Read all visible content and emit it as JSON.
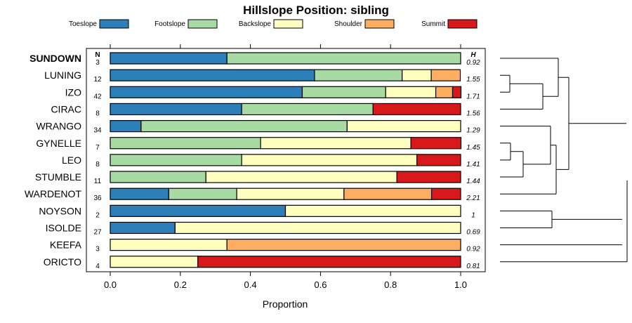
{
  "chart_data": {
    "type": "bar",
    "stacked": true,
    "orientation": "horizontal",
    "title": "Hillslope Position: sibling",
    "xlabel": "Proportion",
    "ylabel": "",
    "xlim": [
      0,
      1
    ],
    "xticks": [
      "0.0",
      "0.2",
      "0.4",
      "0.6",
      "0.8",
      "1.0"
    ],
    "n_header": "N",
    "h_header": "H",
    "categories": [
      "Toeslope",
      "Footslope",
      "Backslope",
      "Shoulder",
      "Summit"
    ],
    "colors": [
      "#2c7fb8",
      "#a8dba3",
      "#ffffbf",
      "#fdae61",
      "#d7191c"
    ],
    "highlight": "SUNDOWN",
    "rows": [
      {
        "name": "SUNDOWN",
        "n": "3",
        "h": "0.92",
        "values": [
          0.333,
          0.667,
          0,
          0,
          0
        ]
      },
      {
        "name": "LUNING",
        "n": "12",
        "h": "1.55",
        "values": [
          0.583,
          0.25,
          0.083,
          0.083,
          0
        ]
      },
      {
        "name": "IZO",
        "n": "42",
        "h": "1.71",
        "values": [
          0.548,
          0.238,
          0.143,
          0.048,
          0.024
        ]
      },
      {
        "name": "CIRAC",
        "n": "8",
        "h": "1.56",
        "values": [
          0.375,
          0.375,
          0,
          0,
          0.25
        ]
      },
      {
        "name": "WRANGO",
        "n": "34",
        "h": "1.29",
        "values": [
          0.088,
          0.588,
          0.324,
          0,
          0
        ]
      },
      {
        "name": "GYNELLE",
        "n": "7",
        "h": "1.45",
        "values": [
          0,
          0.429,
          0.429,
          0,
          0.143
        ]
      },
      {
        "name": "LEO",
        "n": "8",
        "h": "1.41",
        "values": [
          0,
          0.375,
          0.5,
          0,
          0.125
        ]
      },
      {
        "name": "STUMBLE",
        "n": "11",
        "h": "1.44",
        "values": [
          0,
          0.273,
          0.545,
          0,
          0.182
        ]
      },
      {
        "name": "WARDENOT",
        "n": "36",
        "h": "2.21",
        "values": [
          0.167,
          0.194,
          0.306,
          0.25,
          0.083
        ]
      },
      {
        "name": "NOYSON",
        "n": "2",
        "h": "1",
        "values": [
          0.5,
          0,
          0.5,
          0,
          0
        ]
      },
      {
        "name": "ISOLDE",
        "n": "27",
        "h": "0.69",
        "values": [
          0.185,
          0,
          0.815,
          0,
          0
        ]
      },
      {
        "name": "KEEFA",
        "n": "3",
        "h": "0.92",
        "values": [
          0,
          0,
          0.333,
          0.667,
          0
        ]
      },
      {
        "name": "ORICTO",
        "n": "4",
        "h": "0.81",
        "values": [
          0,
          0,
          0.25,
          0,
          0.75
        ]
      }
    ]
  }
}
